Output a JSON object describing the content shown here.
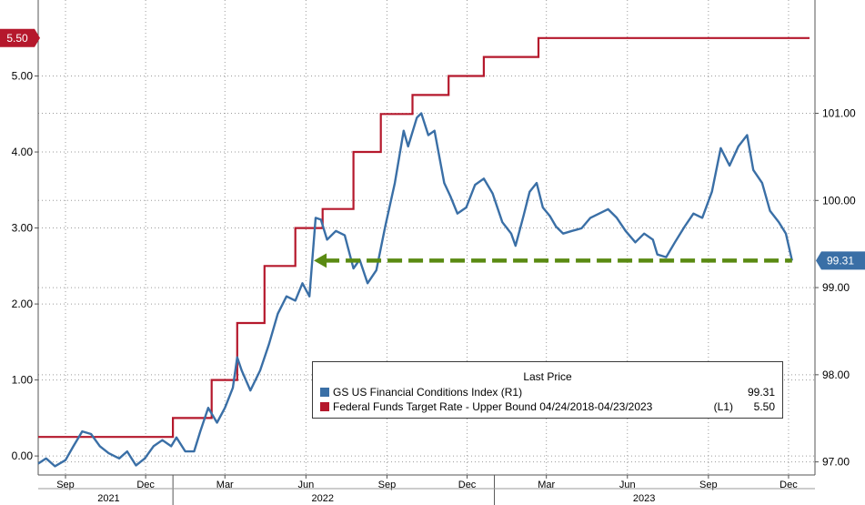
{
  "chart_data": {
    "type": "line",
    "left_axis": {
      "ylim": [
        -0.25,
        6.0
      ],
      "ticks": [
        "0.00",
        "1.00",
        "2.00",
        "3.00",
        "4.00",
        "5.00"
      ],
      "tick_values": [
        0,
        1,
        2,
        3,
        4,
        5
      ]
    },
    "right_axis": {
      "ylim": [
        96.85,
        102.3
      ],
      "ticks": [
        "97.00",
        "98.00",
        "99.00",
        "100.00",
        "101.00"
      ],
      "tick_values": [
        97,
        98,
        99,
        100,
        101
      ]
    },
    "x_axis": {
      "xlim": [
        "2021-08-01",
        "2023-12-31"
      ],
      "month_ticks": [
        {
          "label": "Sep",
          "date": "2021-09-01"
        },
        {
          "label": "Dec",
          "date": "2021-12-01"
        },
        {
          "label": "Mar",
          "date": "2022-03-01"
        },
        {
          "label": "Jun",
          "date": "2022-06-01"
        },
        {
          "label": "Sep",
          "date": "2022-09-01"
        },
        {
          "label": "Dec",
          "date": "2022-12-01"
        },
        {
          "label": "Mar",
          "date": "2023-03-01"
        },
        {
          "label": "Jun",
          "date": "2023-06-01"
        },
        {
          "label": "Sep",
          "date": "2023-09-01"
        },
        {
          "label": "Dec",
          "date": "2023-12-01"
        }
      ],
      "year_labels": [
        {
          "label": "2021",
          "date": "2021-10-20"
        },
        {
          "label": "2022",
          "date": "2022-06-20"
        },
        {
          "label": "2023",
          "date": "2023-06-20"
        }
      ],
      "year_separators": [
        "2022-01-01",
        "2023-01-01"
      ]
    },
    "grid": true,
    "series": [
      {
        "name": "GS US Financial Conditions Index",
        "axis": "right",
        "color": "#3a6fa6",
        "last_price": "99.31",
        "axis_tag": "(R1)",
        "points": [
          [
            "2021-08-01",
            96.98
          ],
          [
            "2021-08-10",
            97.04
          ],
          [
            "2021-08-20",
            96.95
          ],
          [
            "2021-09-01",
            97.02
          ],
          [
            "2021-09-10",
            97.18
          ],
          [
            "2021-09-20",
            97.35
          ],
          [
            "2021-09-30",
            97.32
          ],
          [
            "2021-10-10",
            97.18
          ],
          [
            "2021-10-20",
            97.1
          ],
          [
            "2021-11-01",
            97.04
          ],
          [
            "2021-11-10",
            97.12
          ],
          [
            "2021-11-20",
            96.96
          ],
          [
            "2021-11-30",
            97.04
          ],
          [
            "2021-12-10",
            97.18
          ],
          [
            "2021-12-20",
            97.25
          ],
          [
            "2021-12-30",
            97.18
          ],
          [
            "2022-01-05",
            97.28
          ],
          [
            "2022-01-15",
            97.12
          ],
          [
            "2022-01-25",
            97.12
          ],
          [
            "2022-02-01",
            97.35
          ],
          [
            "2022-02-10",
            97.62
          ],
          [
            "2022-02-20",
            97.45
          ],
          [
            "2022-03-01",
            97.62
          ],
          [
            "2022-03-10",
            97.85
          ],
          [
            "2022-03-15",
            98.2
          ],
          [
            "2022-03-20",
            98.05
          ],
          [
            "2022-03-30",
            97.82
          ],
          [
            "2022-04-10",
            98.05
          ],
          [
            "2022-04-20",
            98.35
          ],
          [
            "2022-04-30",
            98.7
          ],
          [
            "2022-05-10",
            98.9
          ],
          [
            "2022-05-20",
            98.85
          ],
          [
            "2022-05-28",
            99.05
          ],
          [
            "2022-06-05",
            98.9
          ],
          [
            "2022-06-12",
            99.8
          ],
          [
            "2022-06-18",
            99.78
          ],
          [
            "2022-06-25",
            99.55
          ],
          [
            "2022-07-05",
            99.65
          ],
          [
            "2022-07-15",
            99.6
          ],
          [
            "2022-07-25",
            99.22
          ],
          [
            "2022-08-01",
            99.32
          ],
          [
            "2022-08-10",
            99.05
          ],
          [
            "2022-08-20",
            99.2
          ],
          [
            "2022-08-30",
            99.7
          ],
          [
            "2022-09-10",
            100.2
          ],
          [
            "2022-09-20",
            100.8
          ],
          [
            "2022-09-25",
            100.62
          ],
          [
            "2022-10-05",
            100.95
          ],
          [
            "2022-10-10",
            101.0
          ],
          [
            "2022-10-18",
            100.75
          ],
          [
            "2022-10-25",
            100.8
          ],
          [
            "2022-11-05",
            100.2
          ],
          [
            "2022-11-12",
            100.05
          ],
          [
            "2022-11-20",
            99.85
          ],
          [
            "2022-11-30",
            99.92
          ],
          [
            "2022-12-10",
            100.18
          ],
          [
            "2022-12-20",
            100.25
          ],
          [
            "2022-12-30",
            100.08
          ],
          [
            "2023-01-10",
            99.75
          ],
          [
            "2023-01-20",
            99.62
          ],
          [
            "2023-01-25",
            99.48
          ],
          [
            "2023-02-03",
            99.82
          ],
          [
            "2023-02-10",
            100.1
          ],
          [
            "2023-02-18",
            100.2
          ],
          [
            "2023-02-25",
            99.92
          ],
          [
            "2023-03-05",
            99.82
          ],
          [
            "2023-03-12",
            99.7
          ],
          [
            "2023-03-20",
            99.62
          ],
          [
            "2023-03-30",
            99.65
          ],
          [
            "2023-04-10",
            99.68
          ],
          [
            "2023-04-20",
            99.8
          ],
          [
            "2023-04-30",
            99.85
          ],
          [
            "2023-05-10",
            99.9
          ],
          [
            "2023-05-20",
            99.8
          ],
          [
            "2023-05-30",
            99.65
          ],
          [
            "2023-06-10",
            99.52
          ],
          [
            "2023-06-20",
            99.62
          ],
          [
            "2023-06-30",
            99.55
          ],
          [
            "2023-07-05",
            99.38
          ],
          [
            "2023-07-15",
            99.35
          ],
          [
            "2023-07-25",
            99.52
          ],
          [
            "2023-08-05",
            99.7
          ],
          [
            "2023-08-15",
            99.85
          ],
          [
            "2023-08-25",
            99.8
          ],
          [
            "2023-09-05",
            100.1
          ],
          [
            "2023-09-15",
            100.6
          ],
          [
            "2023-09-25",
            100.4
          ],
          [
            "2023-10-05",
            100.62
          ],
          [
            "2023-10-15",
            100.75
          ],
          [
            "2023-10-22",
            100.35
          ],
          [
            "2023-11-01",
            100.2
          ],
          [
            "2023-11-10",
            99.88
          ],
          [
            "2023-11-20",
            99.75
          ],
          [
            "2023-11-28",
            99.62
          ],
          [
            "2023-12-05",
            99.31
          ]
        ]
      },
      {
        "name": "Federal Funds Target Rate - Upper Bound 04/24/2018-04/23/2023",
        "axis": "left",
        "color": "#b5182c",
        "last_price": "5.50",
        "axis_tag": "(L1)",
        "steps": [
          [
            "2021-08-01",
            0.25
          ],
          [
            "2022-01-01",
            0.5
          ],
          [
            "2022-02-14",
            1.0
          ],
          [
            "2022-03-15",
            1.75
          ],
          [
            "2022-04-15",
            2.5
          ],
          [
            "2022-05-20",
            3.0
          ],
          [
            "2022-06-20",
            3.25
          ],
          [
            "2022-07-25",
            4.0
          ],
          [
            "2022-08-25",
            4.5
          ],
          [
            "2022-09-30",
            4.75
          ],
          [
            "2022-11-10",
            5.0
          ],
          [
            "2022-12-20",
            5.25
          ],
          [
            "2023-02-20",
            5.5
          ],
          [
            "2023-12-10",
            5.5
          ]
        ]
      }
    ],
    "reference_line": {
      "axis": "right",
      "value": 99.31,
      "from": "2022-06-10",
      "to": "2023-12-05",
      "style": "dashed",
      "arrow": "left",
      "color": "#5a8a12"
    }
  },
  "legend": {
    "header": "Last Price",
    "rows": [
      {
        "label": "GS US Financial Conditions Index  (R1)",
        "value": "99.31",
        "color": "#3a6fa6"
      },
      {
        "label": "Federal Funds Target Rate - Upper Bound 04/24/2018-04/23/2023",
        "tag": "(L1)",
        "value": "5.50",
        "color": "#b5182c"
      }
    ]
  },
  "tags": {
    "left_last": "5.50",
    "right_last": "99.31"
  }
}
